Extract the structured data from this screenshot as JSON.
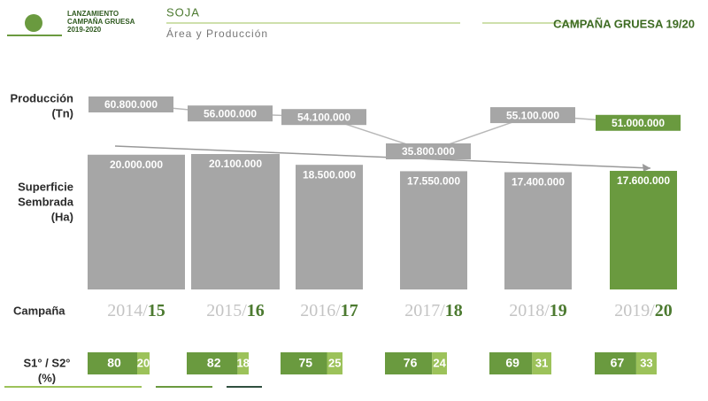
{
  "header": {
    "logo_lines": [
      "LANZAMIENTO",
      "CAMPAÑA GRUESA",
      "2019-2020"
    ],
    "title": "SOJA",
    "subtitle": "Área y Producción",
    "badge": "CAMPAÑA GRUESA 19/20"
  },
  "chart_data": {
    "type": "bar",
    "row_labels": {
      "production": [
        "Producción",
        "(Tn)"
      ],
      "area": [
        "Superficie",
        "Sembrada",
        "(Ha)"
      ],
      "campaign": "Campaña",
      "share": [
        "S1° / S2°",
        "(%)"
      ]
    },
    "categories": [
      [
        "2014/",
        "15"
      ],
      [
        "2015/",
        "16"
      ],
      [
        "2016/",
        "17"
      ],
      [
        "2017/",
        "18"
      ],
      [
        "2018/",
        "19"
      ],
      [
        "2019/",
        "20"
      ]
    ],
    "area": {
      "values": [
        20000000,
        20100000,
        18500000,
        17550000,
        17400000,
        17600000
      ],
      "value_labels": [
        "20.000.000",
        "20.100.000",
        "18.500.000",
        "17.550.000",
        "17.400.000",
        "17.600.000"
      ],
      "colors": [
        "#a6a6a6",
        "#a6a6a6",
        "#a6a6a6",
        "#a6a6a6",
        "#a6a6a6",
        "#6a9a3f"
      ]
    },
    "production": {
      "values": [
        60800000,
        56000000,
        54100000,
        35800000,
        55100000,
        51000000
      ],
      "value_labels": [
        "60.800.000",
        "56.000.000",
        "54.100.000",
        "35.800.000",
        "55.100.000",
        "51.000.000"
      ],
      "colors": [
        "#a6a6a6",
        "#a6a6a6",
        "#a6a6a6",
        "#a6a6a6",
        "#a6a6a6",
        "#6a9a3f"
      ],
      "line_color": "#b8b8b8"
    },
    "share": {
      "s1": [
        80,
        82,
        75,
        76,
        69,
        67
      ],
      "s2": [
        20,
        18,
        25,
        24,
        31,
        33
      ],
      "s1_color": "#6a9a3f",
      "s2_color": "#9cc25a"
    }
  }
}
